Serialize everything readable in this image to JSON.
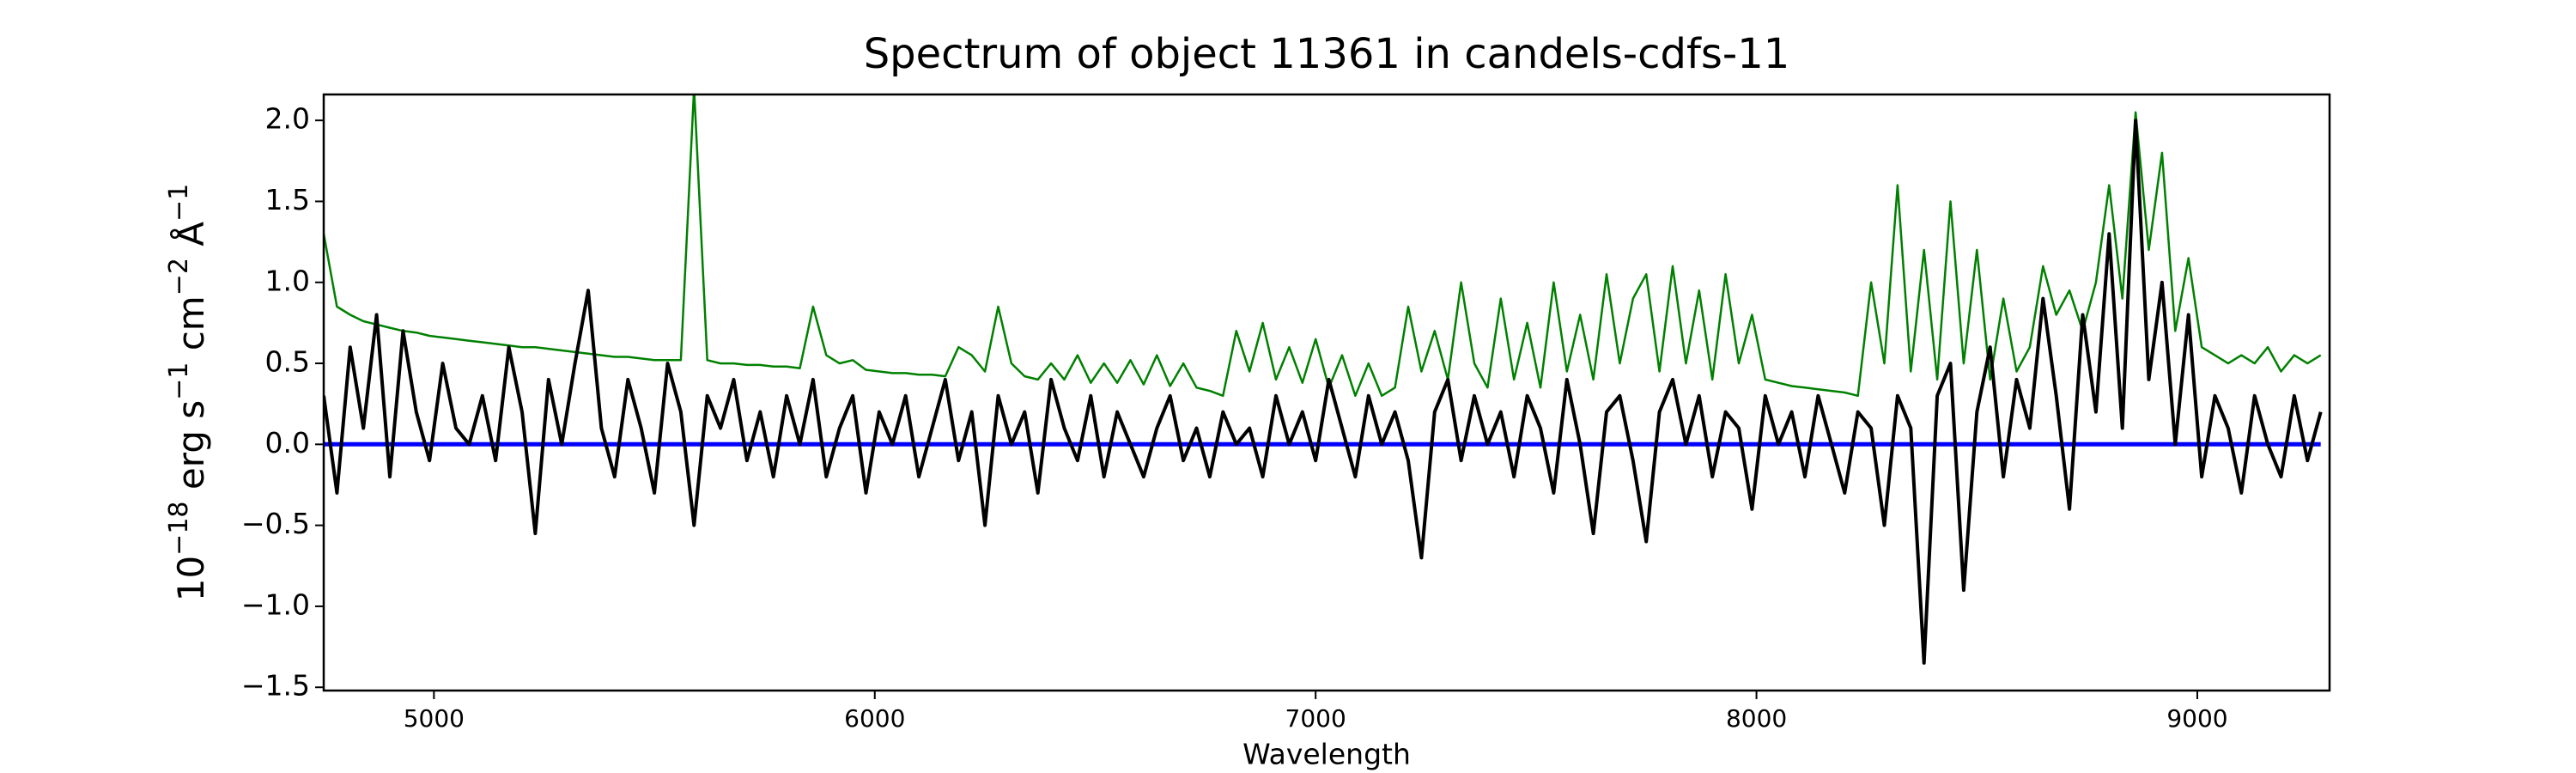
{
  "chart_data": {
    "type": "line",
    "title": "Spectrum of object 11361 in candels-cdfs-11",
    "xlabel": "Wavelength",
    "ylabel": [
      "10",
      "−18",
      " erg s",
      "−1",
      " cm",
      "−2",
      " Å",
      "−1"
    ],
    "xlim": [
      4750,
      9300
    ],
    "ylim": [
      -1.52,
      2.16
    ],
    "xticks": [
      5000,
      6000,
      7000,
      8000,
      9000
    ],
    "yticks": [
      {
        "value": -1.5,
        "label": "−1.5"
      },
      {
        "value": -1.0,
        "label": "−1.0"
      },
      {
        "value": -0.5,
        "label": "−0.5"
      },
      {
        "value": 0,
        "label": "0.0"
      },
      {
        "value": 0.5,
        "label": "0.5"
      },
      {
        "value": 1.0,
        "label": "1.0"
      },
      {
        "value": 1.5,
        "label": "1.5"
      },
      {
        "value": 2.0,
        "label": "2.0"
      }
    ],
    "x": [
      4750,
      4780,
      4810,
      4840,
      4870,
      4900,
      4930,
      4960,
      4990,
      5020,
      5050,
      5080,
      5110,
      5140,
      5170,
      5200,
      5230,
      5260,
      5290,
      5320,
      5350,
      5380,
      5410,
      5440,
      5470,
      5500,
      5530,
      5560,
      5590,
      5620,
      5650,
      5680,
      5710,
      5740,
      5770,
      5800,
      5830,
      5860,
      5890,
      5920,
      5950,
      5980,
      6010,
      6040,
      6070,
      6100,
      6130,
      6160,
      6190,
      6220,
      6250,
      6280,
      6310,
      6340,
      6370,
      6400,
      6430,
      6460,
      6490,
      6520,
      6550,
      6580,
      6610,
      6640,
      6670,
      6700,
      6730,
      6760,
      6790,
      6820,
      6850,
      6880,
      6910,
      6940,
      6970,
      7000,
      7030,
      7060,
      7090,
      7120,
      7150,
      7180,
      7210,
      7240,
      7270,
      7300,
      7330,
      7360,
      7390,
      7420,
      7450,
      7480,
      7510,
      7540,
      7570,
      7600,
      7630,
      7660,
      7690,
      7720,
      7750,
      7780,
      7810,
      7840,
      7870,
      7900,
      7930,
      7960,
      7990,
      8020,
      8050,
      8080,
      8110,
      8140,
      8170,
      8200,
      8230,
      8260,
      8290,
      8320,
      8350,
      8380,
      8410,
      8440,
      8470,
      8500,
      8530,
      8560,
      8590,
      8620,
      8650,
      8680,
      8710,
      8740,
      8770,
      8800,
      8830,
      8860,
      8890,
      8920,
      8950,
      8980,
      9010,
      9040,
      9070,
      9100,
      9130,
      9160,
      9190,
      9220,
      9250,
      9280
    ],
    "series": [
      {
        "color": "#008000",
        "width": 2.5,
        "values": [
          1.3,
          0.85,
          0.8,
          0.76,
          0.74,
          0.72,
          0.7,
          0.69,
          0.67,
          0.66,
          0.65,
          0.64,
          0.63,
          0.62,
          0.61,
          0.6,
          0.6,
          0.59,
          0.58,
          0.57,
          0.56,
          0.55,
          0.54,
          0.54,
          0.53,
          0.52,
          0.52,
          0.52,
          2.2,
          0.52,
          0.5,
          0.5,
          0.49,
          0.49,
          0.48,
          0.48,
          0.47,
          0.85,
          0.55,
          0.5,
          0.52,
          0.46,
          0.45,
          0.44,
          0.44,
          0.43,
          0.43,
          0.42,
          0.6,
          0.55,
          0.45,
          0.85,
          0.5,
          0.42,
          0.4,
          0.5,
          0.4,
          0.55,
          0.38,
          0.5,
          0.38,
          0.52,
          0.37,
          0.55,
          0.36,
          0.5,
          0.35,
          0.33,
          0.3,
          0.7,
          0.45,
          0.75,
          0.4,
          0.6,
          0.38,
          0.65,
          0.35,
          0.55,
          0.3,
          0.5,
          0.3,
          0.35,
          0.85,
          0.45,
          0.7,
          0.4,
          1.0,
          0.5,
          0.35,
          0.9,
          0.4,
          0.75,
          0.35,
          1.0,
          0.45,
          0.8,
          0.4,
          1.05,
          0.5,
          0.9,
          1.05,
          0.45,
          1.1,
          0.5,
          0.95,
          0.4,
          1.05,
          0.5,
          0.8,
          0.4,
          0.38,
          0.36,
          0.35,
          0.34,
          0.33,
          0.32,
          0.3,
          1.0,
          0.5,
          1.6,
          0.45,
          1.2,
          0.4,
          1.5,
          0.5,
          1.2,
          0.4,
          0.9,
          0.45,
          0.6,
          1.1,
          0.8,
          0.95,
          0.7,
          1.0,
          1.6,
          0.9,
          2.05,
          1.2,
          1.8,
          0.7,
          1.15,
          0.6,
          0.55,
          0.5,
          0.55,
          0.5,
          0.6,
          0.45,
          0.55,
          0.5,
          0.55
        ]
      },
      {
        "color": "#0000ff",
        "width": 5,
        "x": [
          4750,
          9280
        ],
        "values": [
          0,
          0
        ]
      },
      {
        "color": "#000000",
        "width": 4,
        "values": [
          0.3,
          -0.3,
          0.6,
          0.1,
          0.8,
          -0.2,
          0.7,
          0.2,
          -0.1,
          0.5,
          0.1,
          0.0,
          0.3,
          -0.1,
          0.6,
          0.2,
          -0.55,
          0.4,
          0.0,
          0.5,
          0.95,
          0.1,
          -0.2,
          0.4,
          0.1,
          -0.3,
          0.5,
          0.2,
          -0.5,
          0.3,
          0.1,
          0.4,
          -0.1,
          0.2,
          -0.2,
          0.3,
          0.0,
          0.4,
          -0.2,
          0.1,
          0.3,
          -0.3,
          0.2,
          0.0,
          0.3,
          -0.2,
          0.1,
          0.4,
          -0.1,
          0.2,
          -0.5,
          0.3,
          0.0,
          0.2,
          -0.3,
          0.4,
          0.1,
          -0.1,
          0.3,
          -0.2,
          0.2,
          0.0,
          -0.2,
          0.1,
          0.3,
          -0.1,
          0.1,
          -0.2,
          0.2,
          0.0,
          0.1,
          -0.2,
          0.3,
          0.0,
          0.2,
          -0.1,
          0.4,
          0.1,
          -0.2,
          0.3,
          0.0,
          0.2,
          -0.1,
          -0.7,
          0.2,
          0.4,
          -0.1,
          0.3,
          0.0,
          0.2,
          -0.2,
          0.3,
          0.1,
          -0.3,
          0.4,
          0.0,
          -0.55,
          0.2,
          0.3,
          -0.1,
          -0.6,
          0.2,
          0.4,
          0.0,
          0.3,
          -0.2,
          0.2,
          0.1,
          -0.4,
          0.3,
          0.0,
          0.2,
          -0.2,
          0.3,
          0.0,
          -0.3,
          0.2,
          0.1,
          -0.5,
          0.3,
          0.1,
          -1.35,
          0.3,
          0.5,
          -0.9,
          0.2,
          0.6,
          -0.2,
          0.4,
          0.1,
          0.9,
          0.3,
          -0.4,
          0.8,
          0.2,
          1.3,
          0.1,
          2.0,
          0.4,
          1.0,
          0.0,
          0.8,
          -0.2,
          0.3,
          0.1,
          -0.3,
          0.3,
          0.0,
          -0.2,
          0.3,
          -0.1,
          0.2
        ]
      }
    ]
  }
}
